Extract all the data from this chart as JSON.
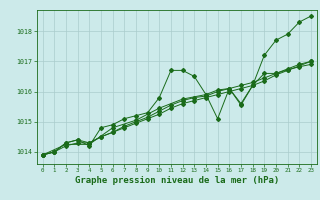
{
  "bg_color": "#cceaea",
  "line_color": "#1a6b1a",
  "grid_color": "#aacccc",
  "xlabel": "Graphe pression niveau de la mer (hPa)",
  "xlabel_fontsize": 6.5,
  "ylim": [
    1013.6,
    1018.7
  ],
  "xlim": [
    -0.5,
    23.5
  ],
  "series1": [
    [
      0,
      1013.9
    ],
    [
      1,
      1014.0
    ],
    [
      2,
      1014.3
    ],
    [
      3,
      1014.4
    ],
    [
      4,
      1014.2
    ],
    [
      5,
      1014.8
    ],
    [
      6,
      1014.9
    ],
    [
      7,
      1015.1
    ],
    [
      8,
      1015.2
    ],
    [
      9,
      1015.3
    ],
    [
      10,
      1015.8
    ],
    [
      11,
      1016.7
    ],
    [
      12,
      1016.7
    ],
    [
      13,
      1016.5
    ],
    [
      14,
      1015.9
    ],
    [
      15,
      1015.1
    ],
    [
      16,
      1016.1
    ],
    [
      17,
      1015.6
    ],
    [
      18,
      1016.2
    ],
    [
      19,
      1017.2
    ],
    [
      20,
      1017.7
    ],
    [
      21,
      1017.9
    ],
    [
      22,
      1018.3
    ],
    [
      23,
      1018.5
    ]
  ],
  "series2": [
    [
      0,
      1013.9
    ],
    [
      1,
      1014.0
    ],
    [
      2,
      1014.3
    ],
    [
      3,
      1014.4
    ],
    [
      4,
      1014.3
    ],
    [
      5,
      1014.5
    ],
    [
      6,
      1014.65
    ],
    [
      7,
      1014.85
    ],
    [
      8,
      1015.0
    ],
    [
      9,
      1015.15
    ],
    [
      10,
      1015.35
    ],
    [
      11,
      1015.55
    ],
    [
      12,
      1015.7
    ],
    [
      13,
      1015.8
    ],
    [
      14,
      1015.85
    ],
    [
      15,
      1016.0
    ],
    [
      16,
      1016.1
    ],
    [
      17,
      1016.2
    ],
    [
      18,
      1016.3
    ],
    [
      19,
      1016.45
    ],
    [
      20,
      1016.6
    ],
    [
      21,
      1016.72
    ],
    [
      22,
      1016.82
    ],
    [
      23,
      1016.9
    ]
  ],
  "series3": [
    [
      0,
      1013.9
    ],
    [
      1,
      1014.0
    ],
    [
      2,
      1014.2
    ],
    [
      3,
      1014.3
    ],
    [
      4,
      1014.3
    ],
    [
      5,
      1014.5
    ],
    [
      6,
      1014.65
    ],
    [
      7,
      1014.8
    ],
    [
      8,
      1014.95
    ],
    [
      9,
      1015.1
    ],
    [
      10,
      1015.25
    ],
    [
      11,
      1015.45
    ],
    [
      12,
      1015.6
    ],
    [
      13,
      1015.7
    ],
    [
      14,
      1015.8
    ],
    [
      15,
      1015.9
    ],
    [
      16,
      1016.0
    ],
    [
      17,
      1016.1
    ],
    [
      18,
      1016.2
    ],
    [
      19,
      1016.35
    ],
    [
      20,
      1016.55
    ],
    [
      21,
      1016.7
    ],
    [
      22,
      1016.85
    ],
    [
      23,
      1017.0
    ]
  ],
  "series4": [
    [
      0,
      1013.9
    ],
    [
      2,
      1014.25
    ],
    [
      4,
      1014.25
    ],
    [
      6,
      1014.8
    ],
    [
      8,
      1015.05
    ],
    [
      10,
      1015.45
    ],
    [
      12,
      1015.75
    ],
    [
      14,
      1015.9
    ],
    [
      15,
      1016.05
    ],
    [
      16,
      1016.1
    ],
    [
      17,
      1015.55
    ],
    [
      18,
      1016.2
    ],
    [
      19,
      1016.6
    ],
    [
      20,
      1016.6
    ],
    [
      21,
      1016.75
    ],
    [
      22,
      1016.9
    ],
    [
      23,
      1017.0
    ]
  ],
  "yticks": [
    1014,
    1015,
    1016,
    1017,
    1018
  ],
  "xtick_labels": [
    "0",
    "1",
    "2",
    "3",
    "4",
    "5",
    "6",
    "7",
    "8",
    "9",
    "10",
    "11",
    "12",
    "13",
    "14",
    "15",
    "16",
    "17",
    "18",
    "19",
    "20",
    "21",
    "22",
    "23"
  ]
}
